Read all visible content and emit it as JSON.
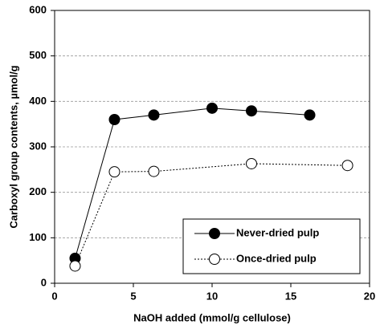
{
  "chart_data": {
    "type": "line",
    "xlabel": "NaOH added (mmol/g  cellulose)",
    "ylabel": "Carboxyl  group contents, µmol/g",
    "series": [
      {
        "name": "Never-dried pulp",
        "color": "#000000",
        "marker_fill": "#000000",
        "line_style": "solid",
        "x": [
          1.3,
          3.8,
          6.3,
          10.0,
          12.5,
          16.2
        ],
        "values": [
          55,
          360,
          370,
          385,
          379,
          370
        ]
      },
      {
        "name": "Once-dried pulp",
        "color": "#000000",
        "marker_fill": "#ffffff",
        "line_style": "dotted",
        "x": [
          1.3,
          3.8,
          6.3,
          12.5,
          18.6
        ],
        "values": [
          38,
          245,
          246,
          263,
          259
        ]
      }
    ],
    "xlim": [
      0,
      20
    ],
    "xticks": [
      0,
      5,
      10,
      15,
      20
    ],
    "ylim": [
      0,
      600
    ],
    "yticks": [
      0,
      100,
      200,
      300,
      400,
      500,
      600
    ],
    "grid": true,
    "legend": "lower right"
  }
}
